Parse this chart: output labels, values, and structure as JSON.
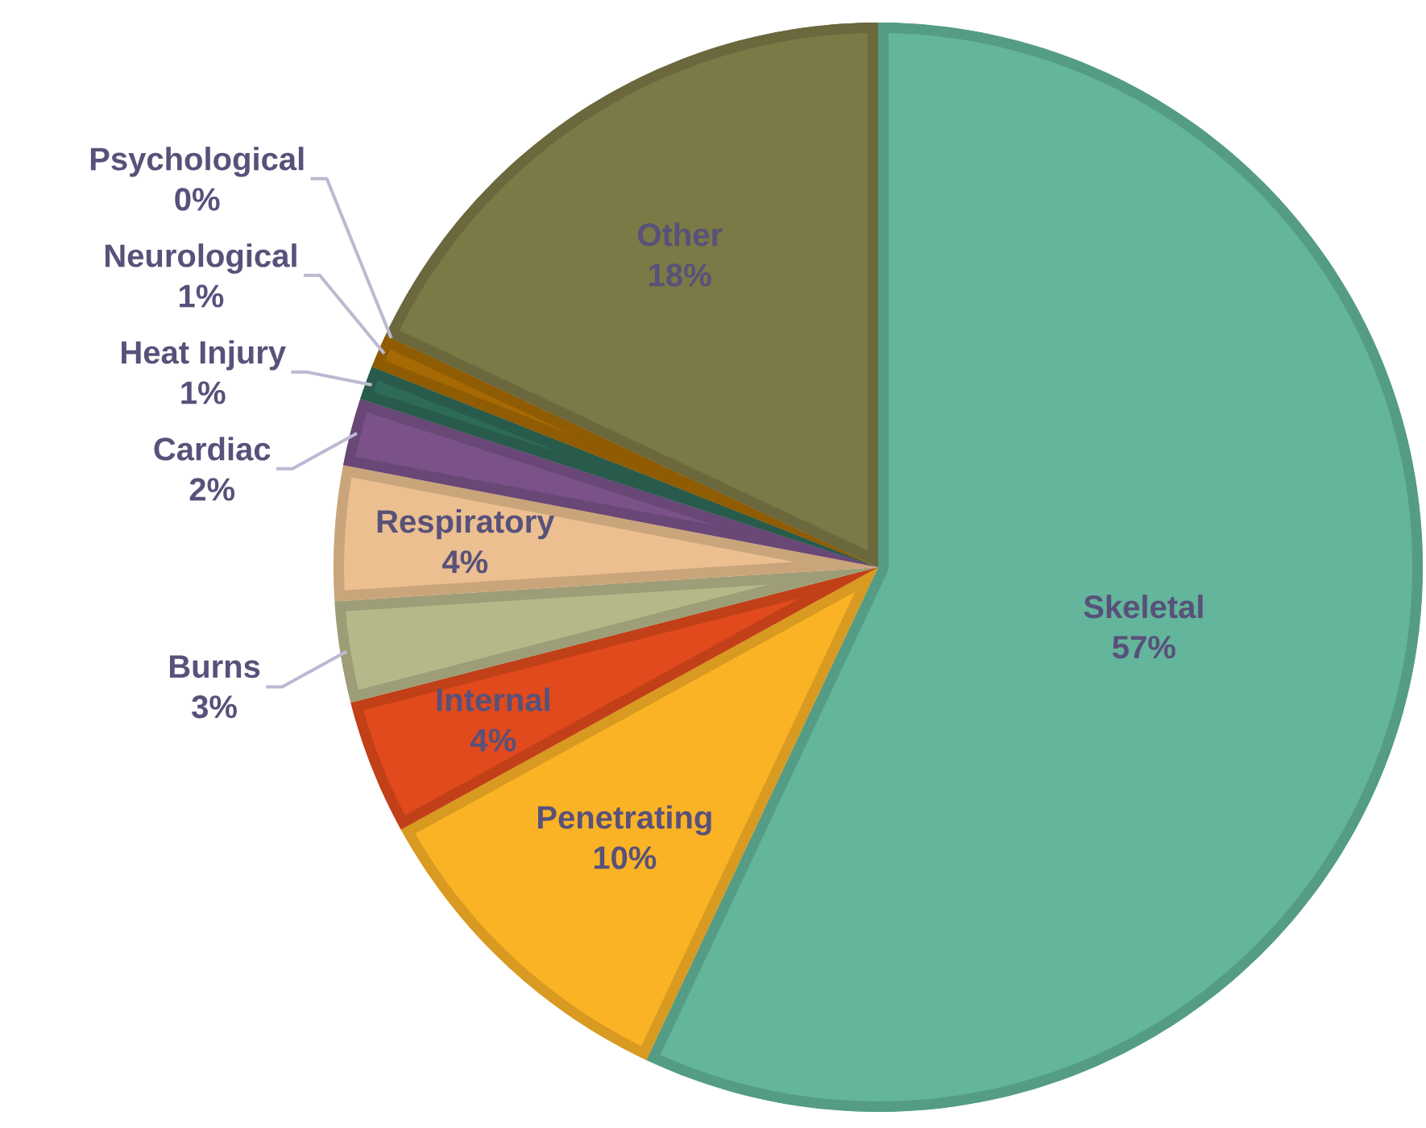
{
  "chart_data": {
    "type": "pie",
    "categories": [
      "Skeletal",
      "Penetrating",
      "Internal",
      "Burns",
      "Respiratory",
      "Cardiac",
      "Heat Injury",
      "Neurological",
      "Psychological",
      "Other"
    ],
    "values": [
      57,
      10,
      4,
      3,
      4,
      2,
      1,
      1,
      0,
      18
    ],
    "colors": [
      "#63b59b",
      "#fbb326",
      "#e04a1c",
      "#b7b88a",
      "#ebbf8f",
      "#7a5289",
      "#2e6a58",
      "#a66a04",
      "#ffffff",
      "#7b7946"
    ],
    "value_labels": [
      "57%",
      "10%",
      "4%",
      "3%",
      "4%",
      "2%",
      "1%",
      "1%",
      "0%",
      "18%"
    ]
  }
}
